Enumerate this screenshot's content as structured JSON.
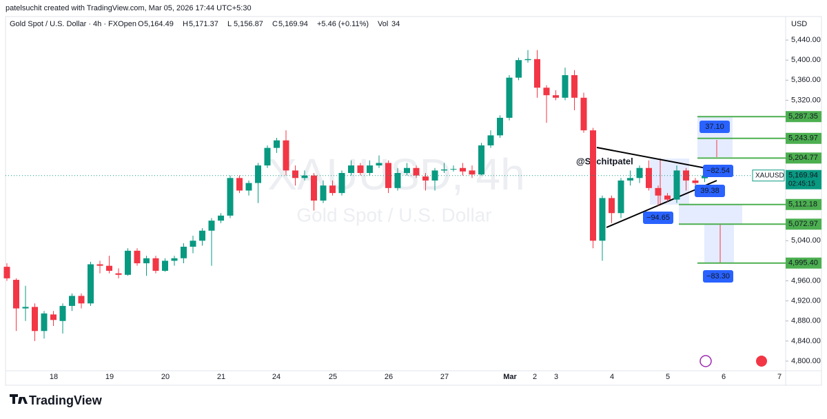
{
  "header": {
    "credit": "patelsuchit created with TradingView.com, Mar 05, 2026 17:44 UTC+5:30",
    "symbol": "Gold Spot / U.S. Dollar · 4h · FXOpen",
    "ohlc": [
      {
        "key": "O",
        "label": "5,164.49"
      },
      {
        "key": "H",
        "label": "5,171.37"
      },
      {
        "key": "L",
        "label": "5,156.87"
      },
      {
        "key": "C",
        "label": "5,169.94"
      }
    ],
    "change": "+5.46 (+0.11%)",
    "volume_key": "Vol",
    "volume": "34"
  },
  "watermark": {
    "symbol": "XAUUSD, 4h",
    "description": "Gold Spot / U.S. Dollar"
  },
  "chart_data": {
    "type": "candlestick",
    "currency": "USD",
    "x_labels": [
      "18",
      "19",
      "20",
      "21",
      "24",
      "25",
      "26",
      "27",
      "Mar",
      "2",
      "3",
      "4",
      "5",
      "6",
      "7"
    ],
    "open": [
      4988,
      4962,
      4905,
      4908,
      4860,
      4893,
      4880,
      4910,
      4930,
      4915,
      4993,
      4990,
      4975,
      4972,
      5020,
      4995,
      5005,
      4980,
      5000,
      5005,
      5028,
      5040,
      5060,
      5080,
      5090,
      5165,
      5140,
      5155,
      5190,
      5225,
      5240,
      5180,
      5165,
      5170,
      5120,
      5150,
      5135,
      5175,
      5190,
      5175,
      5190,
      5195,
      5145,
      5175,
      5185,
      5168,
      5160,
      5180,
      5182,
      5185,
      5180,
      5172,
      5230,
      5250,
      5285,
      5365,
      5400,
      5402,
      5345,
      5330,
      5325,
      5370,
      5325,
      5260,
      5040,
      5125,
      5095,
      5160,
      5165,
      5185,
      5145,
      5130,
      5122,
      5180,
      5160,
      5164.49
    ],
    "high": [
      4995,
      4965,
      4950,
      4915,
      4900,
      4900,
      4915,
      4935,
      4935,
      4998,
      5000,
      5010,
      4985,
      5025,
      5025,
      5010,
      5010,
      5005,
      5010,
      5035,
      5050,
      5065,
      5085,
      5095,
      5170,
      5170,
      5160,
      5195,
      5230,
      5245,
      5260,
      5190,
      5180,
      5175,
      5160,
      5160,
      5180,
      5200,
      5195,
      5200,
      5210,
      5200,
      5185,
      5195,
      5190,
      5175,
      5185,
      5195,
      5190,
      5195,
      5190,
      5235,
      5260,
      5290,
      5370,
      5405,
      5420,
      5420,
      5350,
      5340,
      5385,
      5380,
      5335,
      5265,
      5130,
      5130,
      5165,
      5180,
      5190,
      5200,
      5150,
      5135,
      5190,
      5185,
      5165,
      5171.37
    ],
    "low": [
      4960,
      4860,
      4880,
      4840,
      4845,
      4870,
      4855,
      4900,
      4905,
      4910,
      4975,
      4975,
      4965,
      4970,
      4990,
      4970,
      4975,
      4978,
      4990,
      4995,
      5015,
      5030,
      4990,
      5075,
      5085,
      5135,
      5130,
      5115,
      5185,
      5215,
      5170,
      5150,
      5160,
      5100,
      5115,
      5130,
      5130,
      5170,
      5170,
      5170,
      5185,
      5135,
      5140,
      5170,
      5165,
      5140,
      5140,
      5175,
      5178,
      5170,
      5165,
      5170,
      5225,
      5245,
      5280,
      5360,
      5395,
      5325,
      5275,
      5320,
      5320,
      5300,
      5255,
      5025,
      5000,
      5075,
      5085,
      5150,
      5155,
      5140,
      5110,
      5118,
      5115,
      5140,
      5150,
      5156.87
    ],
    "close": [
      4965,
      4905,
      4908,
      4860,
      4895,
      4882,
      4910,
      4930,
      4915,
      4993,
      4990,
      4980,
      4972,
      5020,
      4995,
      5005,
      4980,
      5000,
      5005,
      5028,
      5040,
      5060,
      5080,
      5090,
      5165,
      5140,
      5155,
      5190,
      5225,
      5240,
      5180,
      5165,
      5170,
      5120,
      5150,
      5135,
      5175,
      5190,
      5175,
      5190,
      5195,
      5145,
      5175,
      5185,
      5170,
      5160,
      5180,
      5182,
      5183,
      5178,
      5172,
      5230,
      5250,
      5285,
      5365,
      5400,
      5402,
      5345,
      5330,
      5325,
      5370,
      5325,
      5260,
      5040,
      5125,
      5095,
      5160,
      5165,
      5185,
      5145,
      5130,
      5122,
      5180,
      5160,
      5155,
      5169.94
    ],
    "colors": {
      "up": "#089981",
      "down": "#f23645",
      "level": "#4caf50"
    },
    "ylim": [
      4778,
      5458
    ],
    "yticks": [
      {
        "value": 5440,
        "label": "5,440.00"
      },
      {
        "value": 5400,
        "label": "5,400.00"
      },
      {
        "value": 5360,
        "label": "5,360.00"
      },
      {
        "value": 5320,
        "label": "5,320.00"
      },
      {
        "value": 5040,
        "label": "5,040.00"
      },
      {
        "value": 4960,
        "label": "4,960.00"
      },
      {
        "value": 4920,
        "label": "4,920.00"
      },
      {
        "value": 4880,
        "label": "4,880.00"
      },
      {
        "value": 4840,
        "label": "4,840.00"
      },
      {
        "value": 4800,
        "label": "4,800.00"
      }
    ],
    "levels": [
      {
        "value": 5287.35,
        "label": "5,287.35"
      },
      {
        "value": 5243.97,
        "label": "5,243.97"
      },
      {
        "value": 5204.77,
        "label": "5,204.77"
      },
      {
        "value": 5112.18,
        "label": "5,112.18"
      },
      {
        "value": 5072.97,
        "label": "5,072.97"
      },
      {
        "value": 4995.4,
        "label": "4,995.40"
      }
    ],
    "last_price": {
      "value": 5169.94,
      "label": "5,169.94"
    },
    "symbol_tag": "XAUUSD",
    "countdown": "02:45:15",
    "annotations": {
      "author": "@Suchitpatel",
      "measures": [
        "37.10",
        "−82.54",
        "39.38",
        "−94.65",
        "−83.30"
      ]
    }
  },
  "footer": {
    "brand": "TradingView"
  }
}
